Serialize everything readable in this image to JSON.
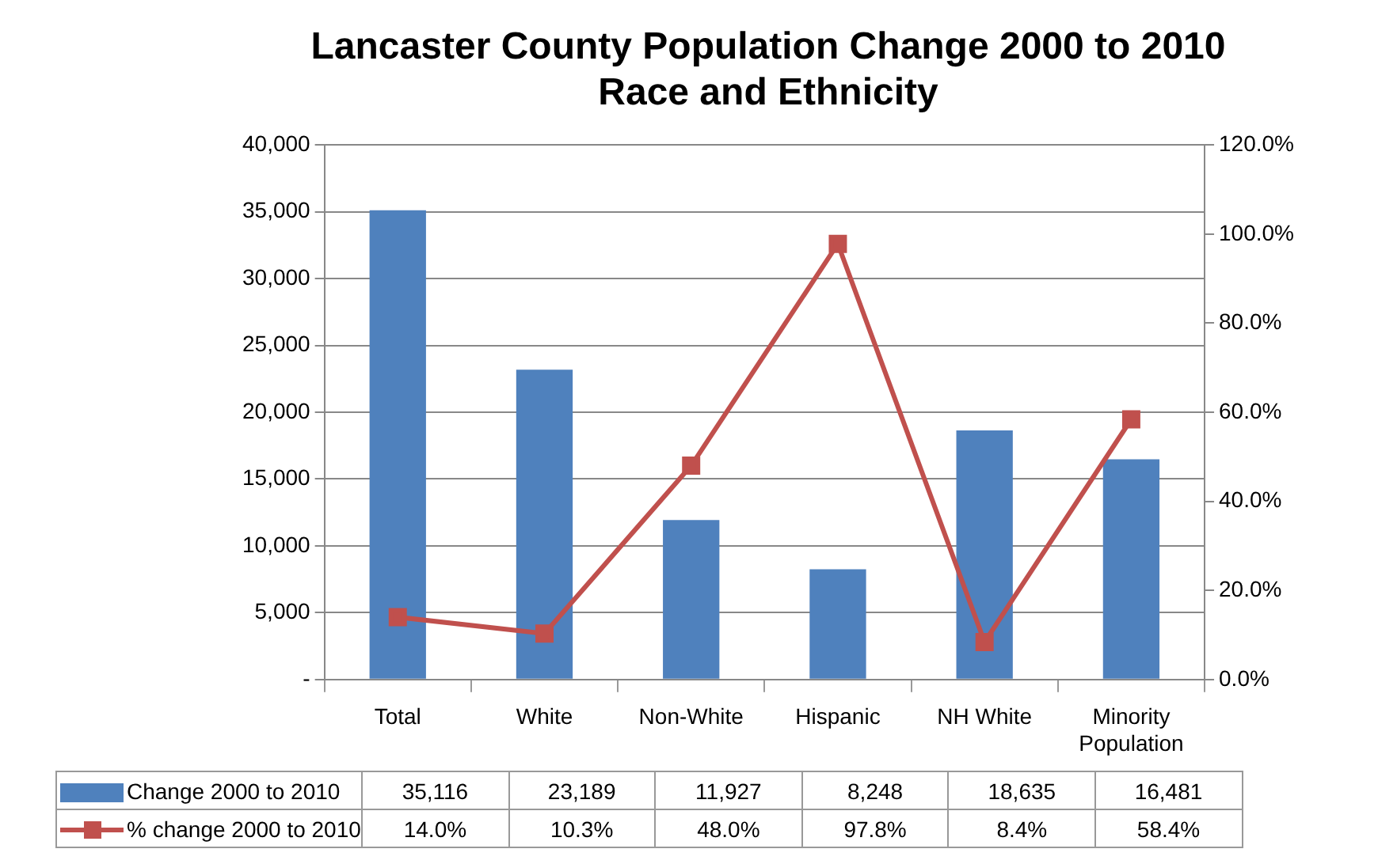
{
  "chart_data": {
    "type": "bar",
    "title": "Lancaster County Population Change 2000 to 2010",
    "subtitle": "Race and Ethnicity",
    "categories": [
      "Total",
      "White",
      "Non-White",
      "Hispanic",
      "NH White",
      "Minority Population"
    ],
    "series": [
      {
        "name": "Change 2000 to 2010",
        "color": "#4f81bd",
        "values": [
          35116,
          23189,
          11927,
          8248,
          18635,
          16481
        ],
        "value_labels": [
          "35,116",
          "23,189",
          "11,927",
          "8,248",
          "18,635",
          "16,481"
        ]
      },
      {
        "name": "% change 2000 to 2010",
        "type": "line",
        "axis": "y2",
        "color": "#c0504d",
        "values": [
          14.0,
          10.3,
          48.0,
          97.8,
          8.4,
          58.4
        ],
        "value_labels": [
          "14.0%",
          "10.3%",
          "48.0%",
          "97.8%",
          "8.4%",
          "58.4%"
        ]
      }
    ],
    "ylim": [
      0,
      40000
    ],
    "yticks": [
      {
        "value": 0,
        "label": "-"
      },
      {
        "value": 5000,
        "label": "5,000"
      },
      {
        "value": 10000,
        "label": "10,000"
      },
      {
        "value": 15000,
        "label": "15,000"
      },
      {
        "value": 20000,
        "label": "20,000"
      },
      {
        "value": 25000,
        "label": "25,000"
      },
      {
        "value": 30000,
        "label": "30,000"
      },
      {
        "value": 35000,
        "label": "35,000"
      },
      {
        "value": 40000,
        "label": "40,000"
      }
    ],
    "y2lim": [
      0,
      120
    ],
    "y2ticks": [
      {
        "value": 0,
        "label": "0.0%"
      },
      {
        "value": 20,
        "label": "20.0%"
      },
      {
        "value": 40,
        "label": "40.0%"
      },
      {
        "value": 60,
        "label": "60.0%"
      },
      {
        "value": 80,
        "label": "80.0%"
      },
      {
        "value": 100,
        "label": "100.0%"
      },
      {
        "value": 120,
        "label": "120.0%"
      }
    ],
    "grid": "y",
    "legend": "bottom",
    "marker": "square",
    "line_style": "solid"
  }
}
